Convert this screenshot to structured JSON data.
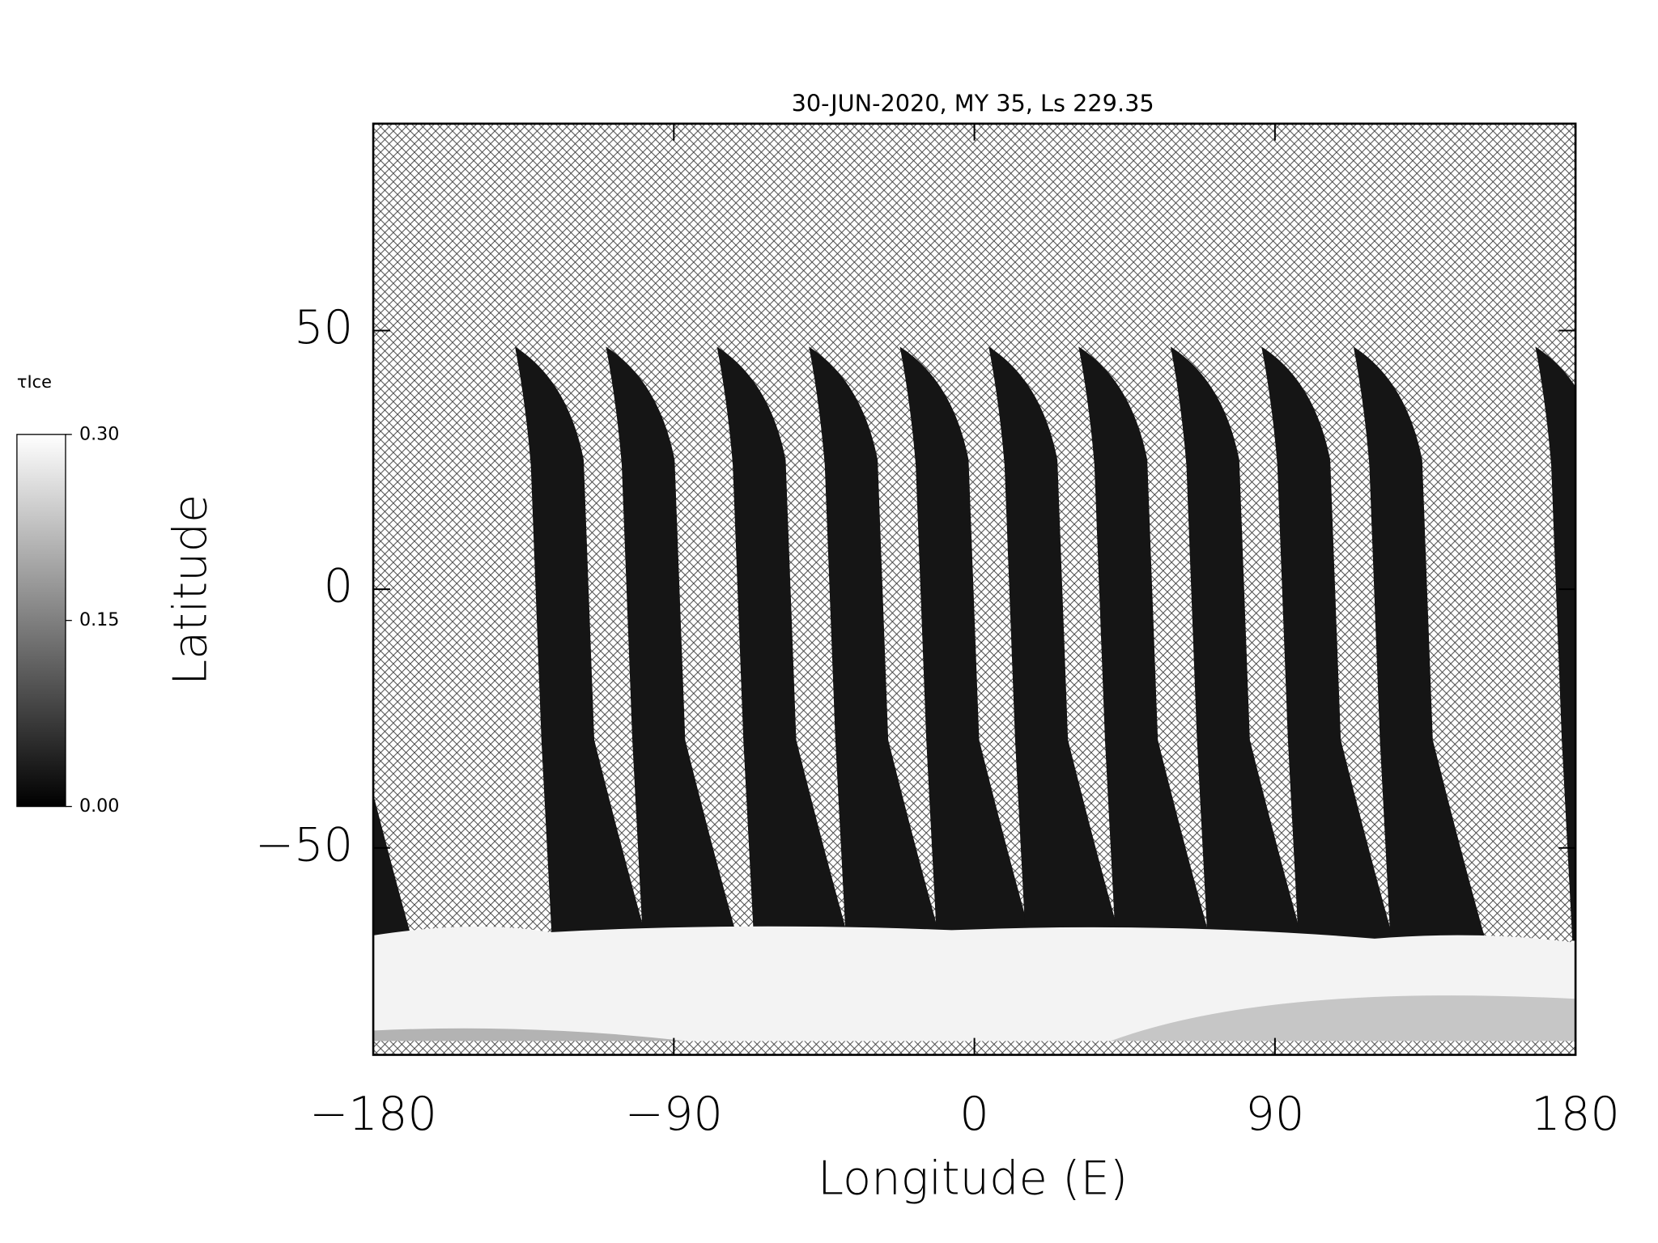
{
  "chart_data": {
    "type": "map",
    "title": "30-JUN-2020, MY 35,  Ls 229.35",
    "x_label": "Longitude (E)",
    "y_label": "Latitude",
    "xlim": [
      -180,
      180
    ],
    "xticks": [
      {
        "value": -180,
        "label": "−180"
      },
      {
        "value": -90,
        "label": "−90"
      },
      0,
      90,
      180
    ],
    "ylim": [
      -90,
      90
    ],
    "yticks": [
      {
        "value": -50,
        "label": "−50"
      },
      0,
      50
    ],
    "colorbar": {
      "label": "τIce",
      "lim": [
        0,
        0.3
      ],
      "ticks": [
        {
          "value": 0,
          "label": "0.00"
        },
        {
          "value": 0.15,
          "label": "0.15"
        },
        {
          "value": 0.3,
          "label": "0.30"
        }
      ]
    }
  }
}
